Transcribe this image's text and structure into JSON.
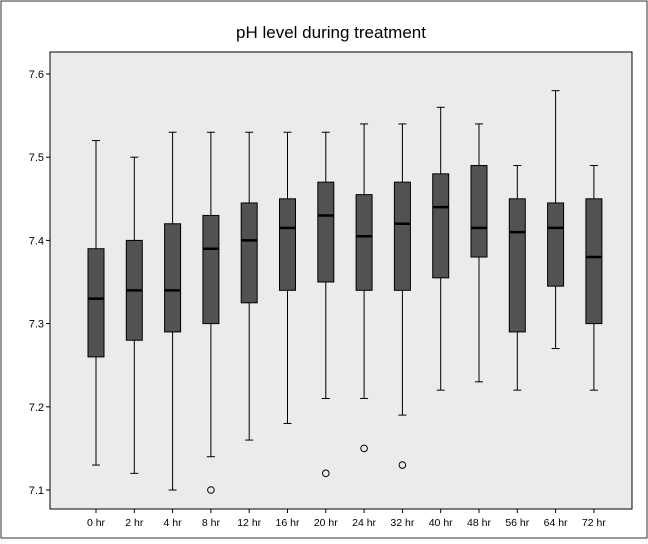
{
  "chart_data": {
    "type": "box",
    "title": "pH level during treatment",
    "xlabel": "",
    "ylabel": "",
    "ylim": [
      7.08,
      7.63
    ],
    "yticks": [
      7.1,
      7.2,
      7.3,
      7.4,
      7.5,
      7.6
    ],
    "ytick_labels": [
      "7.1",
      "7.2",
      "7.3",
      "7.4",
      "7.5",
      "7.6"
    ],
    "grid": false,
    "categories": [
      "0 hr",
      "2 hr",
      "4 hr",
      "8 hr",
      "12 hr",
      "16 hr",
      "20 hr",
      "24 hr",
      "32 hr",
      "40 hr",
      "48 hr",
      "56 hr",
      "64 hr",
      "72 hr"
    ],
    "boxes": [
      {
        "min": 7.13,
        "q1": 7.26,
        "median": 7.33,
        "q3": 7.39,
        "max": 7.52,
        "outliers": []
      },
      {
        "min": 7.12,
        "q1": 7.28,
        "median": 7.34,
        "q3": 7.4,
        "max": 7.5,
        "outliers": []
      },
      {
        "min": 7.1,
        "q1": 7.29,
        "median": 7.34,
        "q3": 7.42,
        "max": 7.53,
        "outliers": []
      },
      {
        "min": 7.14,
        "q1": 7.3,
        "median": 7.39,
        "q3": 7.43,
        "max": 7.53,
        "outliers": [
          7.1
        ]
      },
      {
        "min": 7.16,
        "q1": 7.325,
        "median": 7.4,
        "q3": 7.445,
        "max": 7.53,
        "outliers": []
      },
      {
        "min": 7.18,
        "q1": 7.34,
        "median": 7.415,
        "q3": 7.45,
        "max": 7.53,
        "outliers": []
      },
      {
        "min": 7.21,
        "q1": 7.35,
        "median": 7.43,
        "q3": 7.47,
        "max": 7.53,
        "outliers": [
          7.12
        ]
      },
      {
        "min": 7.21,
        "q1": 7.34,
        "median": 7.405,
        "q3": 7.455,
        "max": 7.54,
        "outliers": [
          7.15
        ]
      },
      {
        "min": 7.19,
        "q1": 7.34,
        "median": 7.42,
        "q3": 7.47,
        "max": 7.54,
        "outliers": [
          7.13
        ]
      },
      {
        "min": 7.22,
        "q1": 7.355,
        "median": 7.44,
        "q3": 7.48,
        "max": 7.56,
        "outliers": []
      },
      {
        "min": 7.23,
        "q1": 7.38,
        "median": 7.415,
        "q3": 7.49,
        "max": 7.54,
        "outliers": []
      },
      {
        "min": 7.22,
        "q1": 7.29,
        "median": 7.41,
        "q3": 7.45,
        "max": 7.49,
        "outliers": []
      },
      {
        "min": 7.27,
        "q1": 7.345,
        "median": 7.415,
        "q3": 7.445,
        "max": 7.58,
        "outliers": []
      },
      {
        "min": 7.22,
        "q1": 7.3,
        "median": 7.38,
        "q3": 7.45,
        "max": 7.49,
        "outliers": []
      }
    ],
    "colors": {
      "plot_background": "#ebebeb",
      "box_fill": "#525252",
      "median_line": "#000000",
      "axis": "#000000"
    }
  }
}
